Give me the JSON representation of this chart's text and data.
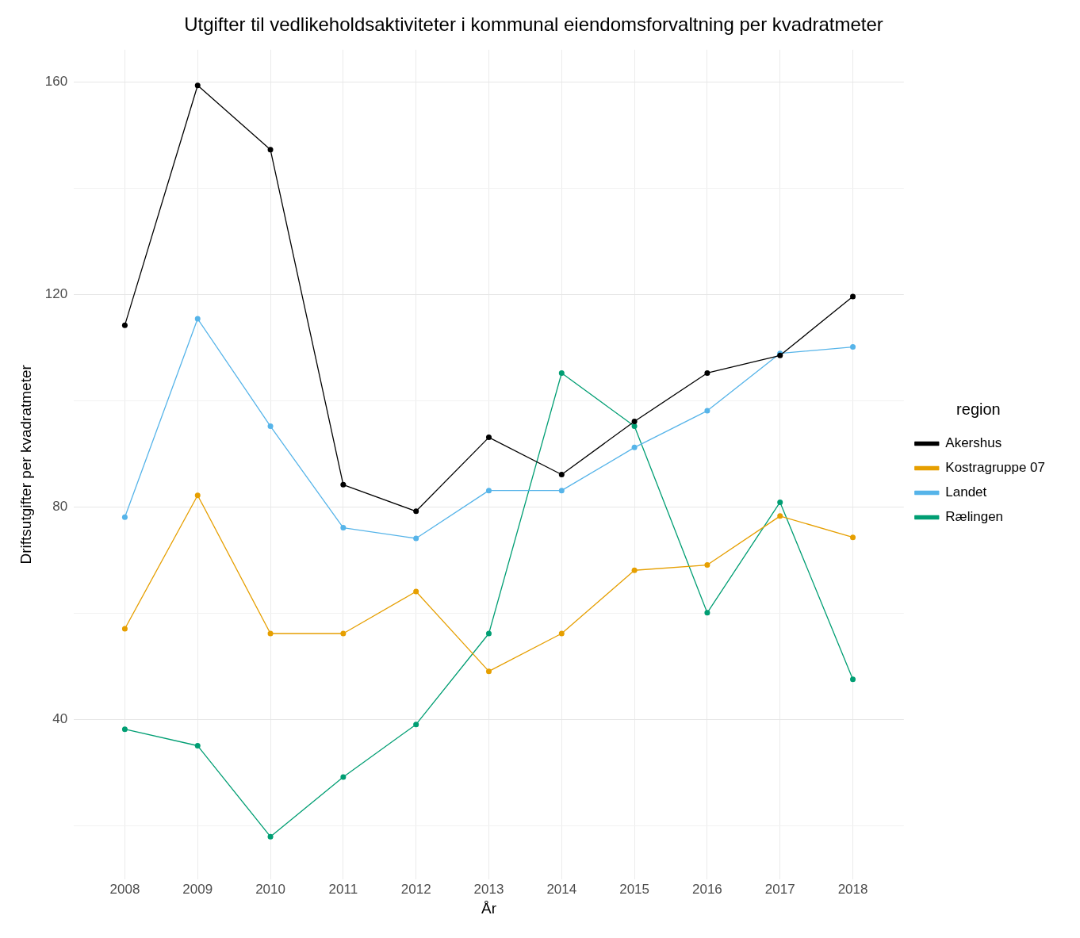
{
  "chart_data": {
    "type": "line",
    "title": "Utgifter til vedlikeholdsaktiviteter i kommunal eiendomsforvaltning per kvadratmeter",
    "xlabel": "År",
    "ylabel": "Driftsutgifter per kvadratmeter",
    "legend_title": "region",
    "x": [
      2008,
      2009,
      2010,
      2011,
      2012,
      2013,
      2014,
      2015,
      2016,
      2017,
      2018
    ],
    "series": [
      {
        "name": "Akershus",
        "color": "#000000",
        "values": [
          114.2,
          159.3,
          147.2,
          84.2,
          79.2,
          93.1,
          86.1,
          96.1,
          105.2,
          108.5,
          119.6
        ]
      },
      {
        "name": "Kostragruppe 07",
        "color": "#e69f00",
        "values": [
          57.1,
          82.2,
          56.2,
          56.2,
          64.1,
          49.1,
          56.2,
          68.1,
          69.1,
          78.3,
          74.3
        ]
      },
      {
        "name": "Landet",
        "color": "#56b4e9",
        "values": [
          78.1,
          115.4,
          95.2,
          76.1,
          74.1,
          83.1,
          83.1,
          91.2,
          98.1,
          108.9,
          110.1
        ]
      },
      {
        "name": "Rælingen",
        "color": "#009e73",
        "values": [
          38.2,
          35.1,
          18.0,
          29.2,
          39.1,
          56.2,
          105.2,
          95.2,
          60.1,
          80.9,
          47.6
        ]
      }
    ],
    "xlim": [
      2007.3,
      2018.7
    ],
    "xticks": [
      2008,
      2009,
      2010,
      2011,
      2012,
      2013,
      2014,
      2015,
      2016,
      2017,
      2018
    ],
    "ylim": [
      10,
      166
    ],
    "yticks": [
      {
        "value": 20,
        "label": null
      },
      40,
      {
        "value": 60,
        "label": null
      },
      80,
      {
        "value": 100,
        "label": null
      },
      120,
      {
        "value": 140,
        "label": null
      },
      160
    ],
    "grid": true,
    "legend": "right",
    "marker": "circle",
    "line_style": "solid"
  }
}
